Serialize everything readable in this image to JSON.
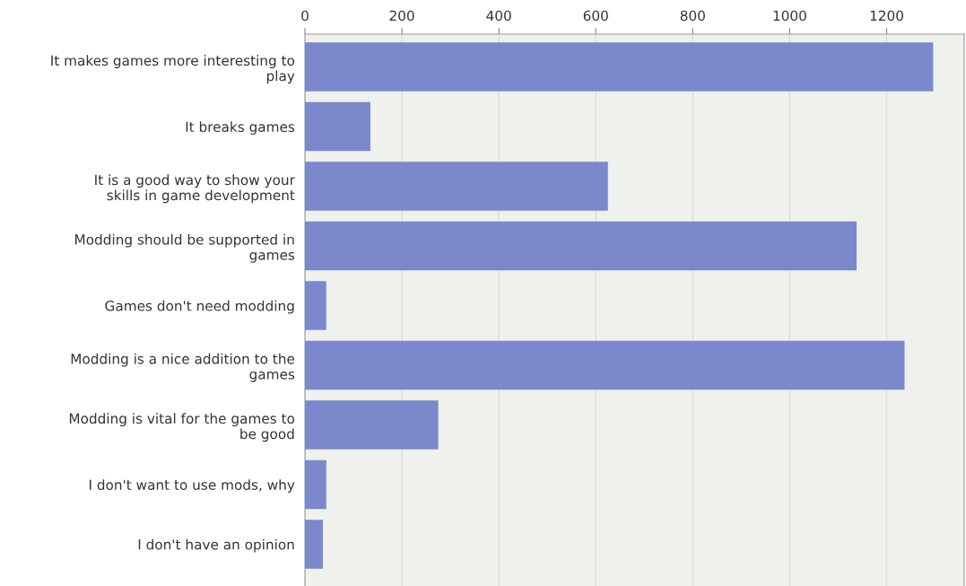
{
  "chart_data": {
    "type": "bar",
    "orientation": "horizontal",
    "categories": [
      "It makes games more interesting to\nplay",
      "It breaks games",
      "It is a good way to show your\nskills in game development",
      "Modding should be supported in\ngames",
      "Games don't need modding",
      "Modding is a nice addition to the\ngames",
      "Modding is vital for the games to\nbe good",
      "I don't want to use mods, why",
      "I don't have an opinion"
    ],
    "values": [
      1296,
      135,
      625,
      1138,
      44,
      1237,
      275,
      44,
      37
    ],
    "color": "#7b88cc",
    "xlim": [
      0,
      1360
    ],
    "xticks": [
      0,
      200,
      400,
      600,
      800,
      1000,
      1200
    ],
    "grid": "x"
  }
}
